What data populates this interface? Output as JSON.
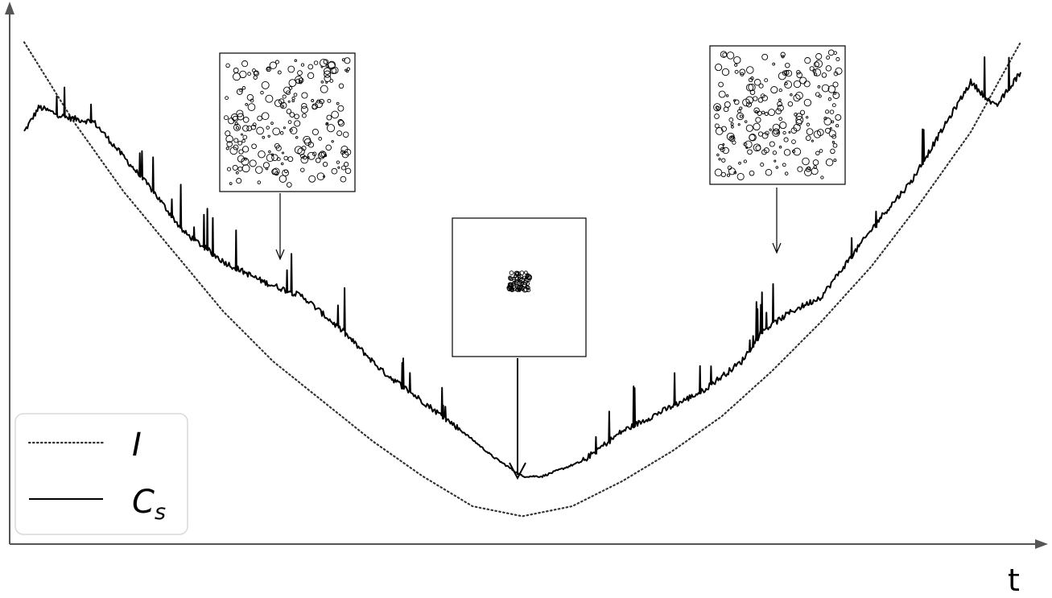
{
  "chart_data": {
    "type": "line",
    "title": "",
    "xlabel": "t",
    "ylabel": "",
    "xlim": [
      0,
      1
    ],
    "ylim": [
      0,
      1
    ],
    "grid": false,
    "legend_position": "bottom-left",
    "series": [
      {
        "name": "I",
        "line_style": "dotted",
        "color": "#333333",
        "x": [
          0.0,
          0.05,
          0.1,
          0.15,
          0.2,
          0.25,
          0.3,
          0.35,
          0.4,
          0.45,
          0.5,
          0.55,
          0.6,
          0.65,
          0.7,
          0.75,
          0.8,
          0.85,
          0.9,
          0.95,
          1.0
        ],
        "y": [
          0.98,
          0.82,
          0.68,
          0.56,
          0.44,
          0.34,
          0.26,
          0.18,
          0.11,
          0.05,
          0.03,
          0.05,
          0.1,
          0.16,
          0.23,
          0.32,
          0.42,
          0.53,
          0.66,
          0.8,
          0.98
        ]
      },
      {
        "name": "C",
        "name_subscript": "s",
        "line_style": "solid",
        "color": "#000000",
        "x": [
          0.0,
          0.015,
          0.04,
          0.07,
          0.1,
          0.13,
          0.16,
          0.2,
          0.24,
          0.28,
          0.32,
          0.36,
          0.4,
          0.44,
          0.47,
          0.5,
          0.52,
          0.56,
          0.6,
          0.64,
          0.68,
          0.72,
          0.74,
          0.77,
          0.8,
          0.83,
          0.86,
          0.89,
          0.92,
          0.95,
          0.975,
          1.0
        ],
        "y": [
          0.8,
          0.85,
          0.83,
          0.82,
          0.75,
          0.68,
          0.6,
          0.54,
          0.5,
          0.47,
          0.4,
          0.32,
          0.26,
          0.2,
          0.15,
          0.11,
          0.11,
          0.14,
          0.2,
          0.24,
          0.28,
          0.34,
          0.4,
          0.44,
          0.47,
          0.55,
          0.63,
          0.7,
          0.8,
          0.9,
          0.85,
          0.92
        ]
      }
    ],
    "insets": [
      {
        "label": "spread",
        "at_x": 0.25,
        "at_y": 0.54
      },
      {
        "label": "clustered",
        "at_x": 0.5,
        "at_y": 0.11
      },
      {
        "label": "spread",
        "at_x": 0.75,
        "at_y": 0.55
      }
    ]
  },
  "legend": {
    "items": [
      {
        "label": "I",
        "subscript": ""
      },
      {
        "label": "C",
        "subscript": "s"
      }
    ]
  }
}
